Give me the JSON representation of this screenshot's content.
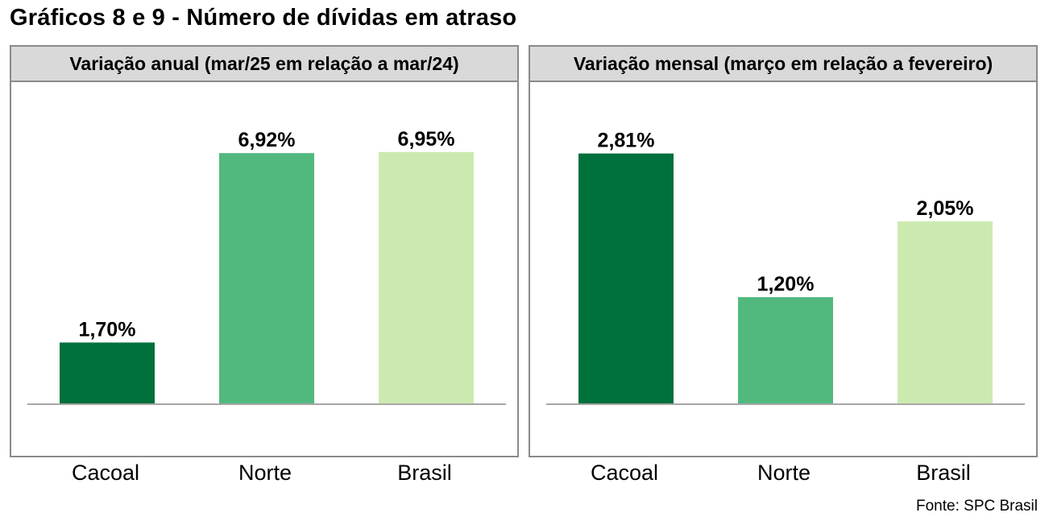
{
  "page": {
    "title": "Gráficos 8 e 9 - Número de dívidas em atraso",
    "source": "Fonte: SPC Brasil"
  },
  "colors": {
    "cacoal": "#00703c",
    "norte": "#52b97e",
    "brasil": "#cceab0",
    "header_bg": "#d9d9d9",
    "border": "#8a8a8a",
    "axis": "#a6a6a6"
  },
  "chart_data": [
    {
      "type": "bar",
      "title": "Variação anual (mar/25 em relação a mar/24)",
      "categories": [
        "Cacoal",
        "Norte",
        "Brasil"
      ],
      "values": [
        1.7,
        6.92,
        6.95
      ],
      "value_labels": [
        "1,70%",
        "6,92%",
        "6,95%"
      ],
      "ylim": [
        0,
        7.5
      ],
      "grid": false,
      "legend": "none"
    },
    {
      "type": "bar",
      "title": "Variação mensal (março em relação a fevereiro)",
      "categories": [
        "Cacoal",
        "Norte",
        "Brasil"
      ],
      "values": [
        2.81,
        1.2,
        2.05
      ],
      "value_labels": [
        "2,81%",
        "1,20%",
        "2,05%"
      ],
      "ylim": [
        0,
        3.05
      ],
      "grid": false,
      "legend": "none"
    }
  ]
}
